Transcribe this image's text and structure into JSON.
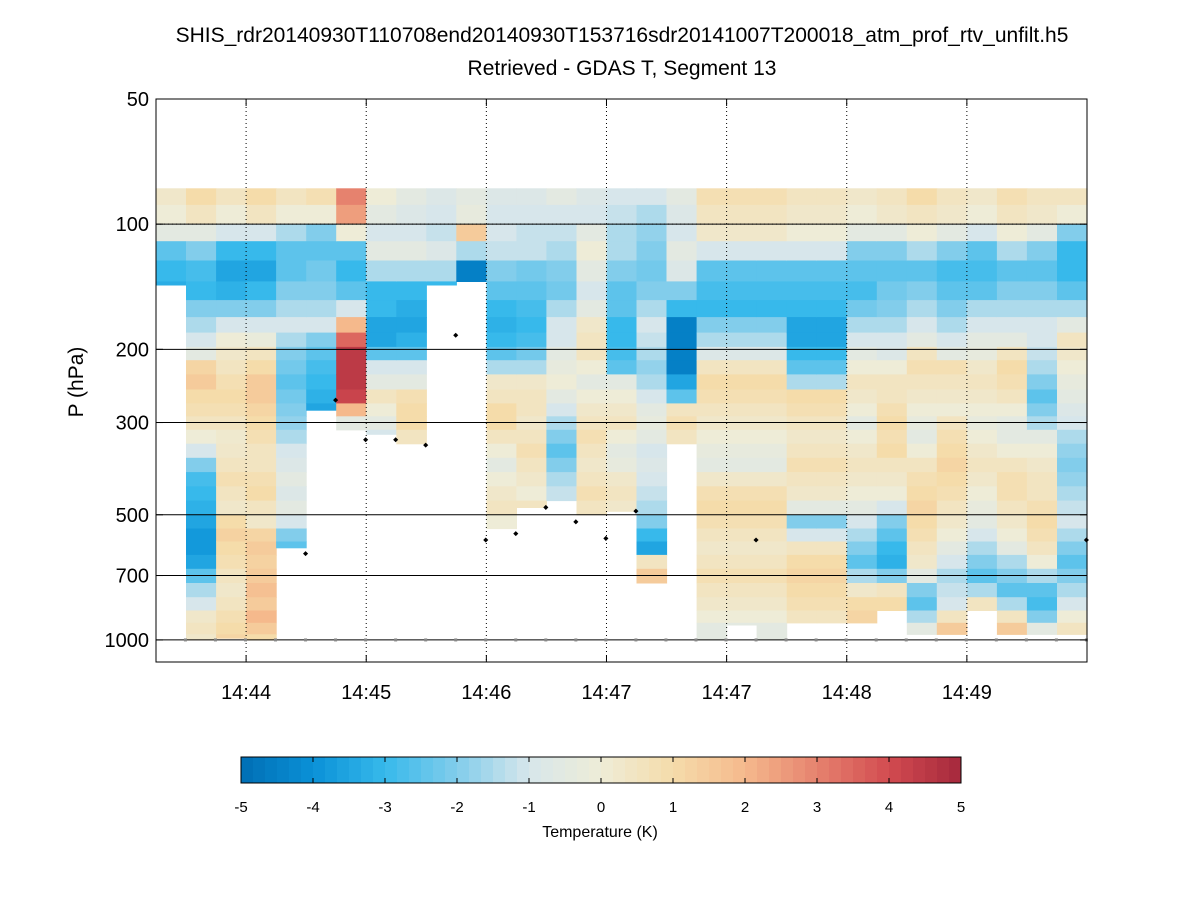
{
  "chart_data": {
    "type": "heatmap",
    "title": "SHIS_rdr20140930T110708end20140930T153716sdr20141007T200018_atm_prof_rtv_unfilt.h5",
    "subtitle": "Retrieved - GDAS T, Segment 13",
    "ylabel": "P (hPa)",
    "yscale": "log",
    "ylim": [
      50,
      1130
    ],
    "y_ticks": [
      50,
      100,
      200,
      300,
      500,
      700,
      1000
    ],
    "x_tick_labels": [
      "14:44",
      "14:45",
      "14:46",
      "14:47",
      "14:47",
      "14:48",
      "14:49"
    ],
    "xlim": [
      0,
      31
    ],
    "colorbar": {
      "label": "Temperature (K)",
      "range": [
        -5,
        5
      ],
      "ticks": [
        -5,
        -4,
        -3,
        -2,
        -1,
        0,
        1,
        2,
        3,
        4,
        5
      ]
    },
    "levels_hPa": [
      85,
      95,
      105,
      115,
      130,
      145,
      160,
      175,
      190,
      205,
      220,
      240,
      260,
      280,
      300,
      325,
      350,
      380,
      410,
      445,
      480,
      520,
      560,
      600,
      650,
      700,
      760,
      820,
      880,
      940,
      1000
    ],
    "profile_base_x": [
      1,
      2,
      3,
      4,
      5,
      6,
      7,
      8,
      9,
      10,
      11,
      12,
      13,
      14,
      15,
      16,
      17,
      18,
      19,
      20,
      21,
      22,
      23,
      24,
      25,
      26,
      27,
      28,
      29,
      30,
      31
    ],
    "surface_pressure_hPa": [
      1000,
      1000,
      1000,
      1000,
      620,
      265,
      330,
      330,
      340,
      185,
      575,
      555,
      480,
      520,
      570,
      490,
      1000,
      1000,
      1000,
      575,
      1000,
      1000,
      1000,
      1000,
      1000,
      1000,
      1000,
      1000,
      1000,
      1000,
      575
    ],
    "retrieval_bottom_hPa": [
      140,
      1000,
      990,
      1000,
      600,
      280,
      320,
      320,
      345,
      140,
      575,
      555,
      480,
      520,
      810,
      490,
      1000,
      1000,
      1000,
      920,
      1000,
      1000,
      1000,
      1000,
      1000,
      1000,
      1000,
      1000,
      1000,
      1000,
      1000
    ],
    "series": [
      {
        "name": "col1",
        "values": [
          0.3,
          0.0,
          -0.5,
          -2.5,
          -3.0,
          -3.3
        ]
      },
      {
        "name": "col2",
        "values": [
          1.0,
          0.5,
          -0.5,
          -2.0,
          -2.8,
          -3.0,
          -2.0,
          -1.5,
          -1.0,
          -0.5,
          1.2,
          1.5,
          1.0,
          0.8,
          0.5,
          0.0,
          -1.0,
          -2.0,
          -2.8,
          -3.0,
          -3.2,
          -3.5,
          -3.8,
          -3.8,
          -3.5,
          -2.5,
          -1.5,
          -1.0,
          0.3,
          0.5,
          0.3
        ]
      },
      {
        "name": "col3",
        "values": [
          0.5,
          0.0,
          -1.0,
          -3.0,
          -3.5,
          -3.2,
          -2.0,
          -1.0,
          0.0,
          0.3,
          0.5,
          0.8,
          1.0,
          0.8,
          0.5,
          0.2,
          0.3,
          0.5,
          0.8,
          0.5,
          0.3,
          1.0,
          1.3,
          1.0,
          0.8,
          0.5,
          0.3,
          0.5,
          0.8,
          1.0,
          1.2
        ]
      },
      {
        "name": "col4",
        "values": [
          1.0,
          0.5,
          -1.0,
          -3.0,
          -3.5,
          -3.0,
          -2.0,
          -1.0,
          -0.2,
          0.5,
          1.0,
          1.5,
          1.5,
          1.2,
          1.0,
          0.8,
          0.5,
          0.5,
          0.8,
          1.0,
          0.5,
          0.3,
          1.2,
          1.5,
          1.3,
          1.5,
          1.8,
          1.5,
          2.0,
          1.5,
          1.0
        ]
      },
      {
        "name": "col5",
        "values": [
          0.5,
          0.0,
          -1.5,
          -2.5,
          -2.5,
          -2.0,
          -1.5,
          -1.0,
          -1.5,
          -2.0,
          -2.2,
          -2.5,
          -2.2,
          -2.0,
          -1.8,
          -1.5,
          -1.0,
          -0.8,
          -0.5,
          -0.8,
          -0.5,
          -1.0,
          -2.0,
          -2.5,
          -2.8,
          -2.5,
          -2.0,
          -1.8,
          -1.5,
          -1.5,
          -1.3
        ]
      },
      {
        "name": "col6",
        "values": [
          0.8,
          0.0,
          -2.0,
          -2.5,
          -2.2,
          -2.0,
          -1.5,
          -1.0,
          -2.0,
          -2.5,
          -2.8,
          -3.0,
          -3.2,
          -3.5,
          -3.2,
          -3.0,
          -2.5,
          -2.0,
          -1.5,
          -1.0,
          -0.5
        ]
      },
      {
        "name": "col7",
        "values": [
          3.0,
          2.5,
          0.0,
          -2.5,
          -3.0,
          -2.5,
          -1.0,
          2.0,
          3.5,
          4.5,
          4.5,
          4.5,
          4.2,
          2.0,
          -0.5
        ]
      },
      {
        "name": "col8",
        "values": [
          0.0,
          -0.5,
          -1.0,
          -0.5,
          -1.5,
          -3.0,
          -3.0,
          -3.5,
          -3.5,
          -2.5,
          -1.0,
          -0.5,
          0.5,
          0.0,
          -0.5,
          -1.0
        ]
      },
      {
        "name": "col9",
        "values": [
          -0.5,
          -0.8,
          -1.0,
          -0.5,
          -1.5,
          -3.0,
          -3.3,
          -3.5,
          -3.2,
          -2.5,
          -1.0,
          -0.5,
          0.8,
          1.0,
          1.0,
          0.5
        ]
      },
      {
        "name": "col10",
        "values": [
          -0.8,
          -1.0,
          -1.2,
          -0.8,
          -1.5,
          -3.0,
          -3.5,
          -3.8,
          -3.5,
          -2.8,
          -1.0,
          -0.5,
          0.5,
          1.0,
          0.8,
          0.3,
          -1.0
        ]
      },
      {
        "name": "col11",
        "values": [
          -0.5,
          -0.3,
          1.5,
          -1.5,
          -4.5
        ]
      },
      {
        "name": "col12",
        "values": [
          -0.8,
          -1.0,
          -1.0,
          -1.2,
          -2.0,
          -2.5,
          -3.0,
          -3.2,
          -3.0,
          -2.5,
          -1.5,
          0.3,
          0.5,
          1.0,
          1.0,
          0.5,
          0.0,
          -0.5,
          0.0,
          0.3,
          0.5,
          0.0
        ]
      },
      {
        "name": "col13",
        "values": [
          -0.8,
          -1.0,
          -1.2,
          -1.2,
          -2.2,
          -2.5,
          -2.8,
          -3.0,
          -2.8,
          -2.2,
          -1.5,
          0.3,
          0.5,
          0.5,
          0.3,
          0.5,
          0.8,
          0.5,
          0.3,
          0.0,
          0.5,
          0.5,
          0.3
        ]
      },
      {
        "name": "col14",
        "values": [
          -0.5,
          -1.0,
          -1.2,
          -1.5,
          -2.0,
          -2.2,
          -1.5,
          -1.0,
          -1.0,
          -0.5,
          -0.3,
          0.0,
          -0.5,
          -1.0,
          -1.5,
          -2.0,
          -2.5,
          -2.0,
          -1.5,
          -1.2
        ]
      },
      {
        "name": "col15",
        "values": [
          -0.8,
          -1.0,
          -0.5,
          0.0,
          -0.5,
          -1.0,
          -0.5,
          0.3,
          0.5,
          0.5,
          0.0,
          -0.5,
          0.0,
          0.3,
          0.5,
          0.8,
          0.5,
          0.3,
          0.5,
          0.8,
          0.5
        ]
      },
      {
        "name": "col16",
        "values": [
          -1.0,
          -1.2,
          -1.5,
          -1.5,
          -2.0,
          -2.5,
          -2.5,
          -3.0,
          -3.0,
          -2.8,
          -2.5,
          -0.5,
          0.0,
          0.3,
          0.5,
          0.0,
          -0.5,
          -0.3,
          0.3,
          0.5,
          0.3
        ]
      },
      {
        "name": "col17",
        "values": [
          -1.0,
          -1.5,
          -1.8,
          -2.0,
          -2.2,
          -2.0,
          -1.5,
          -1.0,
          -1.2,
          -1.5,
          -1.8,
          -1.5,
          -1.0,
          -0.5,
          -0.3,
          -0.5,
          -1.0,
          -0.8,
          -1.0,
          -1.2,
          -1.5,
          -2.0,
          -3.0,
          -3.5,
          0.5,
          1.5
        ]
      },
      {
        "name": "col18",
        "values": [
          -0.5,
          -0.8,
          -1.0,
          -0.5,
          -0.8,
          -2.0,
          -3.0,
          -4.5,
          -4.5,
          -4.5,
          -4.5,
          -3.5,
          -2.5,
          0.5,
          0.8,
          0.5
        ]
      },
      {
        "name": "col19",
        "values": [
          0.8,
          0.5,
          0.3,
          -1.0,
          -2.5,
          -2.8,
          -3.0,
          -2.0,
          -1.5,
          -0.8,
          0.5,
          1.0,
          0.8,
          0.5,
          0.3,
          0.0,
          -0.3,
          -0.5,
          0.3,
          0.8,
          1.0,
          0.8,
          0.5,
          0.3,
          0.5,
          0.8,
          0.5,
          0.3,
          0.0,
          -0.5,
          -0.5
        ]
      },
      {
        "name": "col20",
        "values": [
          0.8,
          0.5,
          0.3,
          -1.0,
          -2.5,
          -2.8,
          -3.0,
          -2.0,
          -1.5,
          -0.8,
          0.5,
          1.0,
          0.8,
          0.5,
          0.3,
          0.0,
          -0.3,
          -0.5,
          0.3,
          0.8,
          1.0,
          0.8,
          0.5,
          0.3,
          0.5,
          0.8,
          0.5,
          0.3,
          0.0,
          -0.5,
          -0.5
        ]
      },
      {
        "name": "col21",
        "values": [
          0.8,
          0.5,
          0.3,
          -1.0,
          -2.5,
          -2.8,
          -3.0,
          -2.0,
          -1.5,
          -0.8,
          0.5,
          1.0,
          0.8,
          0.5,
          0.3,
          0.0,
          -0.3,
          -0.5,
          0.3,
          0.8,
          1.0,
          0.8,
          0.5,
          0.3,
          0.5,
          0.8,
          0.5,
          0.3,
          0.0,
          -0.5,
          -0.5
        ]
      },
      {
        "name": "col22",
        "values": [
          0.5,
          0.3,
          0.0,
          -1.0,
          -2.5,
          -2.8,
          -3.0,
          -3.5,
          -3.5,
          -3.0,
          -2.5,
          -1.5,
          1.0,
          0.8,
          0.5,
          0.3,
          0.5,
          0.8,
          0.5,
          0.3,
          -0.5,
          -2.0,
          -1.0,
          0.5,
          1.0,
          1.2,
          1.0,
          0.8,
          0.5
        ]
      },
      {
        "name": "col23",
        "values": [
          0.5,
          0.3,
          0.0,
          -1.0,
          -2.5,
          -2.8,
          -3.0,
          -3.5,
          -3.5,
          -3.0,
          -2.5,
          -1.5,
          1.0,
          0.8,
          0.5,
          0.3,
          0.5,
          0.8,
          0.5,
          0.3,
          -0.5,
          -2.0,
          -1.0,
          0.5,
          1.0,
          1.2,
          1.0,
          0.8,
          0.5
        ]
      },
      {
        "name": "col24",
        "values": [
          0.3,
          0.0,
          -0.5,
          -2.0,
          -2.5,
          -2.8,
          -2.2,
          -1.5,
          -1.0,
          -0.5,
          0.0,
          0.5,
          0.3,
          0.0,
          -0.5,
          0.0,
          0.3,
          0.5,
          0.3,
          0.0,
          -0.5,
          -1.0,
          -1.5,
          -2.0,
          -2.5,
          -1.5,
          0.3,
          1.0,
          1.2
        ]
      },
      {
        "name": "col25",
        "values": [
          0.5,
          0.3,
          -0.5,
          -2.0,
          -2.5,
          -2.2,
          -2.0,
          -1.5,
          -1.0,
          -0.8,
          0.0,
          0.5,
          0.5,
          0.8,
          1.0,
          0.8,
          1.0,
          0.5,
          0.3,
          0.0,
          -1.0,
          -2.0,
          -2.5,
          -3.0,
          -3.2,
          -2.0,
          0.5,
          1.0
        ]
      },
      {
        "name": "col26",
        "values": [
          1.0,
          0.5,
          0.0,
          -1.5,
          -2.5,
          -2.0,
          -1.5,
          -1.0,
          -0.5,
          0.5,
          0.8,
          0.5,
          0.3,
          0.0,
          -0.3,
          -0.5,
          0.0,
          0.5,
          0.8,
          1.0,
          1.2,
          1.0,
          0.8,
          0.5,
          0.3,
          -0.5,
          -2.0,
          -2.5,
          -1.5,
          -0.5
        ]
      },
      {
        "name": "col27",
        "values": [
          0.5,
          0.3,
          -0.5,
          -2.0,
          -2.8,
          -2.5,
          -2.0,
          -1.5,
          -1.0,
          -0.5,
          0.8,
          0.5,
          0.3,
          0.0,
          0.5,
          0.8,
          1.0,
          1.2,
          1.0,
          0.8,
          0.5,
          0.3,
          0.0,
          -0.5,
          -1.0,
          -1.5,
          -1.2,
          -1.0,
          0.5,
          1.5
        ]
      },
      {
        "name": "col28",
        "values": [
          0.3,
          0.0,
          -1.0,
          -2.5,
          -2.8,
          -2.5,
          -1.5,
          -1.0,
          -0.5,
          -0.3,
          0.3,
          0.5,
          0.3,
          0.0,
          -0.3,
          0.0,
          0.3,
          0.5,
          0.3,
          0.0,
          -0.3,
          -0.5,
          -1.0,
          -1.5,
          -2.0,
          -2.5,
          -1.5,
          0.5
        ]
      },
      {
        "name": "col29",
        "values": [
          0.8,
          0.5,
          0.0,
          -1.5,
          -2.5,
          -2.0,
          -1.5,
          -1.0,
          -0.5,
          0.5,
          1.0,
          0.8,
          0.5,
          0.0,
          -0.5,
          -0.5,
          0.0,
          0.5,
          0.8,
          0.8,
          0.5,
          0.3,
          0.0,
          -0.5,
          -1.5,
          -2.0,
          -2.5,
          -1.5,
          0.5,
          1.5
        ]
      },
      {
        "name": "col30",
        "values": [
          0.5,
          0.3,
          -0.5,
          -2.0,
          -2.5,
          -2.0,
          -1.5,
          -1.0,
          -1.0,
          -1.2,
          -1.5,
          -2.0,
          -2.5,
          -2.0,
          -1.5,
          -0.5,
          0.0,
          0.3,
          0.5,
          0.5,
          0.8,
          1.0,
          0.8,
          0.5,
          0.0,
          -1.5,
          -2.5,
          -2.8,
          -2.0,
          -0.5
        ]
      },
      {
        "name": "col31",
        "values": [
          0.5,
          0.0,
          -2.0,
          -3.0,
          -3.0,
          -2.5,
          -1.5,
          -0.5,
          0.5,
          0.3,
          0.0,
          -0.3,
          -0.5,
          -0.8,
          -1.0,
          -1.5,
          -1.8,
          -2.0,
          -1.8,
          -1.5,
          -1.2,
          -1.0,
          -1.5,
          -2.0,
          -2.5,
          -2.0,
          -1.5,
          -1.0,
          0.0,
          0.5
        ]
      }
    ]
  }
}
